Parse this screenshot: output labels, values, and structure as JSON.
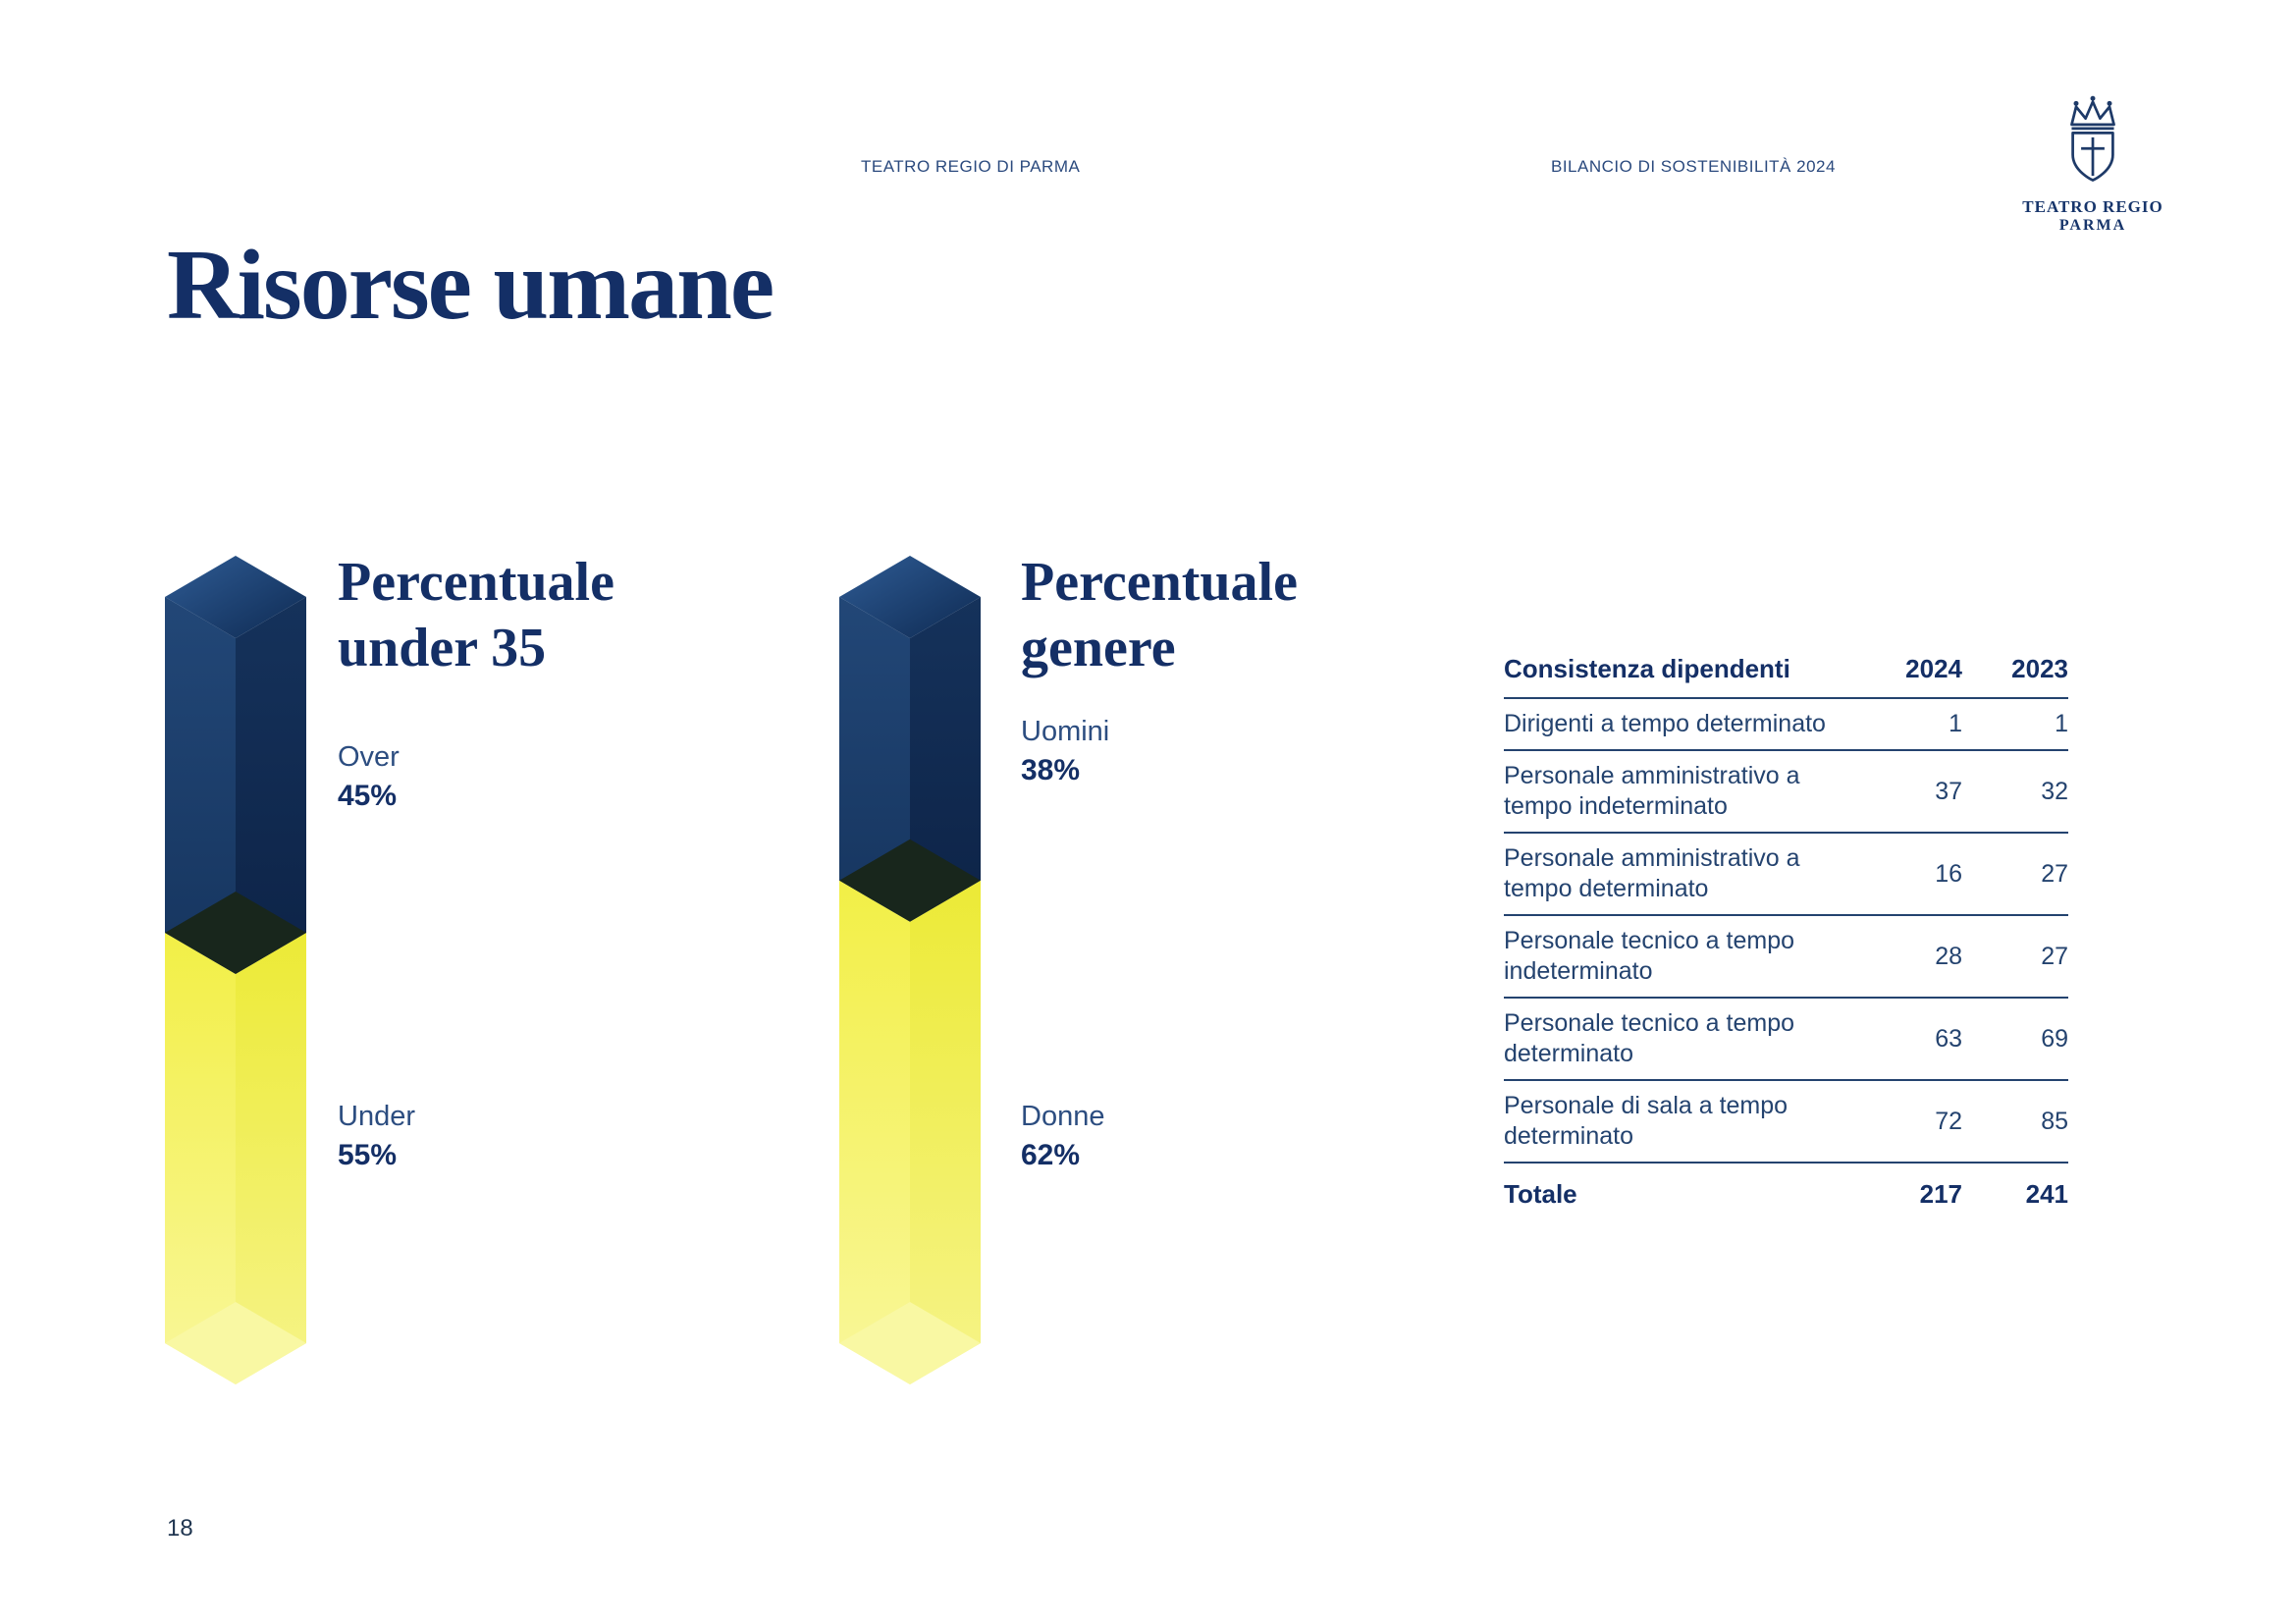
{
  "page": {
    "header_left": "TEATRO REGIO DI PARMA",
    "header_right": "BILANCIO DI SOSTENIBILITÀ 2024",
    "title": "Risorse umane",
    "page_number": "18"
  },
  "logo": {
    "line1": "TEATRO REGIO",
    "line2": "PARMA"
  },
  "colors": {
    "navy": "#17356b",
    "yellow": "#f2ef48",
    "pale_yellow": "#f9f8a3",
    "junction_dark": "#18261c"
  },
  "chart_data": [
    {
      "type": "bar",
      "title": "Percentuale under 35",
      "stacked": true,
      "unit": "%",
      "segments": [
        {
          "label": "Over",
          "value": 45,
          "value_label": "45%",
          "color_key": "navy"
        },
        {
          "label": "Under",
          "value": 55,
          "value_label": "55%",
          "color_key": "yellow"
        }
      ]
    },
    {
      "type": "bar",
      "title": "Percentuale genere",
      "stacked": true,
      "unit": "%",
      "segments": [
        {
          "label": "Uomini",
          "value": 38,
          "value_label": "38%",
          "color_key": "navy"
        },
        {
          "label": "Donne",
          "value": 62,
          "value_label": "62%",
          "color_key": "yellow"
        }
      ]
    }
  ],
  "table": {
    "title": "Consistenza dipendenti",
    "columns": [
      "2024",
      "2023"
    ],
    "rows": [
      {
        "label": "Dirigenti a tempo determinato",
        "v2024": "1",
        "v2023": "1"
      },
      {
        "label": "Personale amministrativo a tempo indeterminato",
        "v2024": "37",
        "v2023": "32"
      },
      {
        "label": "Personale amministrativo a tempo determinato",
        "v2024": "16",
        "v2023": "27"
      },
      {
        "label": "Personale tecnico a tempo indeterminato",
        "v2024": "28",
        "v2023": "27"
      },
      {
        "label": "Personale tecnico a tempo determinato",
        "v2024": "63",
        "v2023": "69"
      },
      {
        "label": "Personale di sala a tempo determinato",
        "v2024": "72",
        "v2023": "85"
      }
    ],
    "total": {
      "label": "Totale",
      "v2024": "217",
      "v2023": "241"
    }
  }
}
